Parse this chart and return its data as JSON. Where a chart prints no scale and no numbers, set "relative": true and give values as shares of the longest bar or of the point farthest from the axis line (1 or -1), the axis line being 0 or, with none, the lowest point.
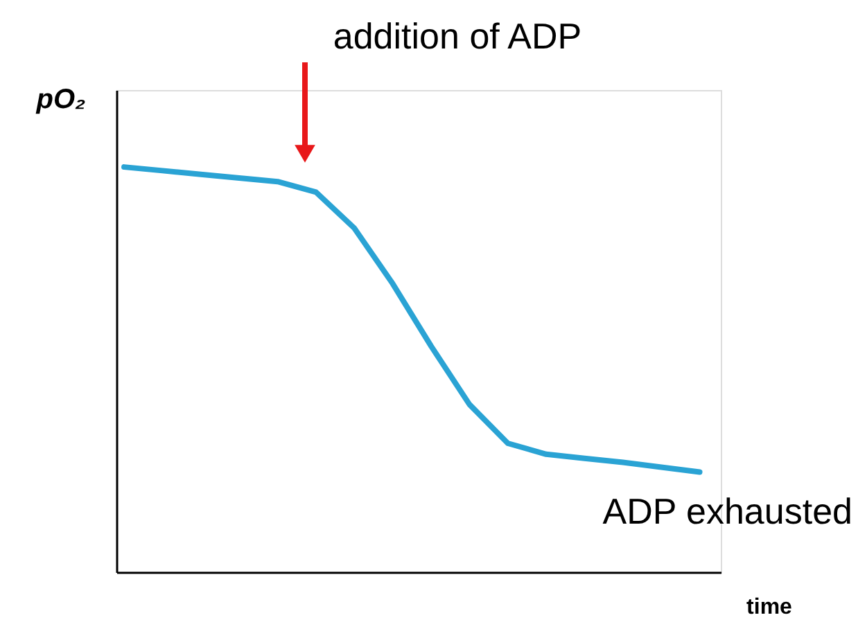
{
  "chart_data": {
    "type": "line",
    "relative": true,
    "xlabel": "time",
    "ylabel": "pO₂",
    "tick_labels": false,
    "grid": false,
    "marker": "none",
    "line_style": "solid",
    "categories": [
      null,
      null,
      null,
      null,
      null,
      null,
      null,
      null,
      null,
      null,
      null,
      null,
      null,
      null,
      null,
      null
    ],
    "series": [
      {
        "color": "#2aa3d4",
        "values": [
          1.0,
          0.991,
          0.982,
          0.973,
          0.964,
          0.938,
          0.849,
          0.712,
          0.558,
          0.414,
          0.318,
          0.291,
          0.281,
          0.271,
          0.259,
          0.247
        ]
      }
    ],
    "annotations": [
      "addition of ADP",
      "ADP exhausted"
    ]
  }
}
